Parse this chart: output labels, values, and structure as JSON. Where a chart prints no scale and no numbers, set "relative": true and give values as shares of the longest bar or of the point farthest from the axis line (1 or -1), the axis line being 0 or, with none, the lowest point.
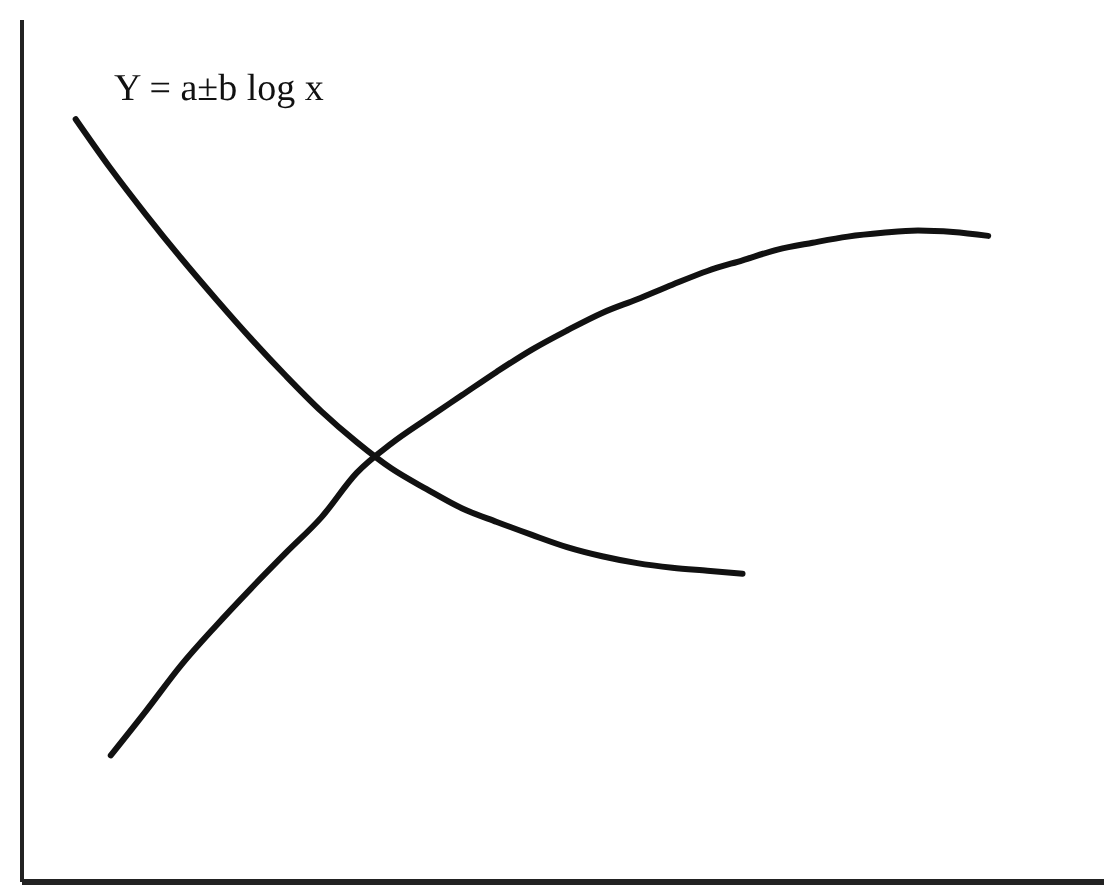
{
  "chart_data": {
    "type": "line",
    "title": "Y = a±b log x",
    "relative": true,
    "categories": [
      null,
      null,
      null,
      null,
      null,
      null,
      null,
      null,
      null,
      null,
      null,
      null,
      null,
      null,
      null,
      null,
      null,
      null,
      null,
      null,
      null,
      null,
      null,
      null,
      null,
      null,
      null
    ],
    "series": [
      {
        "color": "#111111",
        "values": [
          1.0,
          0.935,
          0.875,
          0.818,
          0.764,
          0.712,
          0.663,
          0.617,
          0.577,
          0.542,
          0.515,
          0.49,
          0.472,
          0.455,
          0.439,
          0.427,
          0.418,
          0.412,
          0.408,
          0.404,
          null,
          null,
          null,
          null,
          null,
          null,
          null
        ]
      },
      {
        "color": "#111111",
        "values": [
          null,
          0.166,
          0.224,
          0.284,
          0.336,
          0.385,
          0.432,
          0.478,
          0.536,
          0.575,
          0.607,
          0.638,
          0.669,
          0.698,
          0.723,
          0.746,
          0.764,
          0.783,
          0.801,
          0.815,
          0.829,
          0.838,
          0.846,
          0.851,
          0.854,
          0.852,
          0.847
        ]
      }
    ]
  }
}
